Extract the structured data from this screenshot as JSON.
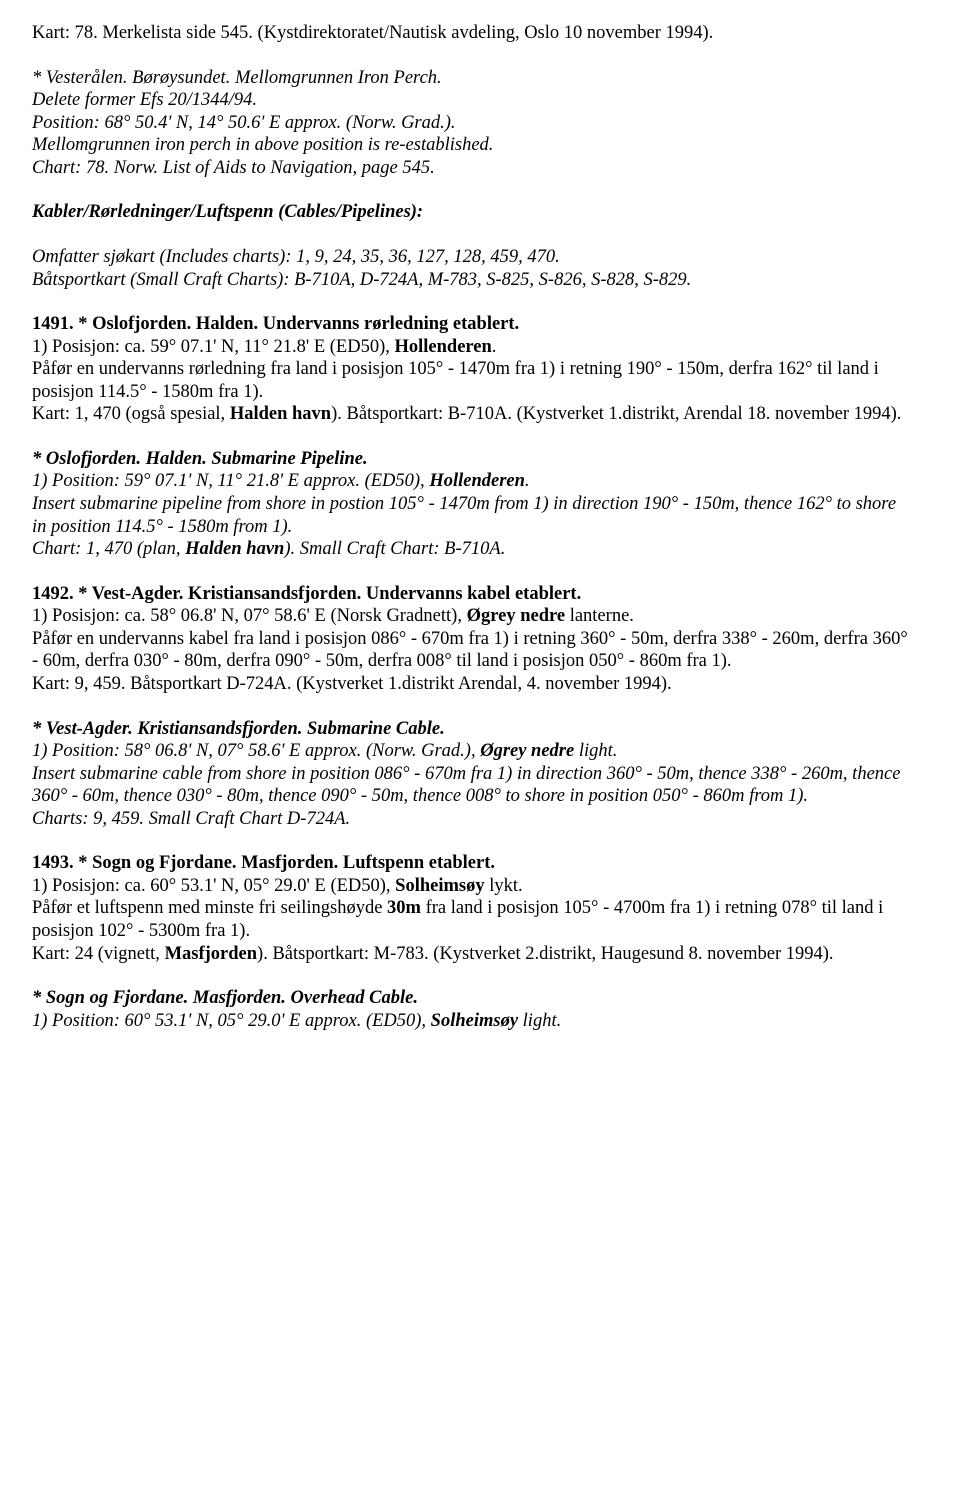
{
  "p0": [
    {
      "text": "Kart: 78. Merkelista side 545. (Kystdirektoratet/Nautisk avdeling, Oslo 10 november 1994)."
    }
  ],
  "p1": [
    {
      "text": "* Vesterålen. Børøysundet. Mellomgrunnen Iron Perch.",
      "style": "italic"
    },
    {
      "br": true
    },
    {
      "text": "Delete former Efs 20/1344/94.",
      "style": "italic"
    },
    {
      "br": true
    },
    {
      "text": "Position: 68° 50.4' N, 14° 50.6' E approx. (Norw. Grad.).",
      "style": "italic"
    },
    {
      "br": true
    },
    {
      "text": "Mellomgrunnen iron perch in above position is re-established.",
      "style": "italic"
    },
    {
      "br": true
    },
    {
      "text": "Chart: 78. Norw. List of Aids to Navigation, page 545.",
      "style": "italic"
    }
  ],
  "p2": [
    {
      "text": "Kabler/Rørledninger/Luftspenn (Cables/Pipelines):",
      "style": "bold-italic"
    }
  ],
  "p3": [
    {
      "text": "Omfatter sjøkart ",
      "style": "italic"
    },
    {
      "text": "(Includes charts)",
      "style": "italic"
    },
    {
      "text": ": 1, 9, 24, 35, 36, 127, 128, 459, 470.",
      "style": "italic"
    },
    {
      "br": true
    },
    {
      "text": "Båtsportkart ",
      "style": "italic"
    },
    {
      "text": "(Small Craft Charts)",
      "style": "italic"
    },
    {
      "text": ": B-710A, D-724A, M-783, S-825, S-826, S-828, S-829.",
      "style": "italic"
    }
  ],
  "p4": [
    {
      "text": "1491. * Oslofjorden. Halden. Undervanns rørledning etablert.",
      "style": "bold"
    },
    {
      "br": true
    },
    {
      "text": "1) Posisjon: ca. 59° 07.1' N, 11° 21.8' E (ED50), "
    },
    {
      "text": "Hollenderen",
      "style": "bold"
    },
    {
      "text": "."
    },
    {
      "br": true
    },
    {
      "text": "Påfør en undervanns rørledning fra land i posisjon 105° - 1470m fra 1) i retning 190° - 150m, derfra 162° til land i posisjon 114.5° - 1580m fra 1)."
    },
    {
      "br": true
    },
    {
      "text": "Kart: 1, 470 (også spesial, "
    },
    {
      "text": "Halden havn",
      "style": "bold"
    },
    {
      "text": "). Båtsportkart: B-710A. (Kystverket 1.distrikt, Arendal 18. november 1994)."
    }
  ],
  "p5": [
    {
      "text": "* Oslofjorden. Halden. Submarine Pipeline.",
      "style": "bold-italic"
    },
    {
      "br": true
    },
    {
      "text": "1) Position: 59° 07.1' N, 11° 21.8' E approx. (ED50), ",
      "style": "italic"
    },
    {
      "text": "Hollenderen",
      "style": "bold-italic"
    },
    {
      "text": ".",
      "style": "italic"
    },
    {
      "br": true
    },
    {
      "text": "Insert submarine pipeline from shore in postion 105° - 1470m from 1) in direction 190° - 150m, thence 162° to shore in position 114.5° - 1580m from 1).",
      "style": "italic"
    },
    {
      "br": true
    },
    {
      "text": "Chart: 1, 470 (plan, ",
      "style": "italic"
    },
    {
      "text": "Halden havn",
      "style": "bold-italic"
    },
    {
      "text": "). Small Craft Chart: B-710A.",
      "style": "italic"
    }
  ],
  "p6": [
    {
      "text": "1492. * Vest-Agder. Kristiansandsfjorden. Undervanns kabel etablert.",
      "style": "bold"
    },
    {
      "br": true
    },
    {
      "text": "1) Posisjon: ca. 58° 06.8' N, 07° 58.6' E (Norsk Gradnett), "
    },
    {
      "text": "Øgrey nedre",
      "style": "bold"
    },
    {
      "text": " lanterne."
    },
    {
      "br": true
    },
    {
      "text": "Påfør en undervanns kabel fra land i posisjon 086° - 670m fra 1) i retning 360° - 50m, derfra 338° - 260m, derfra 360° - 60m, derfra 030° - 80m, derfra 090° - 50m, derfra 008° til land i posisjon 050° - 860m fra 1)."
    },
    {
      "br": true
    },
    {
      "text": "Kart: 9, 459. Båtsportkart D-724A. (Kystverket 1.distrikt Arendal, 4. november 1994)."
    }
  ],
  "p7": [
    {
      "text": "* Vest-Agder. Kristiansandsfjorden. Submarine Cable.",
      "style": "bold-italic"
    },
    {
      "br": true
    },
    {
      "text": "1) Position: 58° 06.8' N, 07° 58.6' E approx. (Norw. Grad.), ",
      "style": "italic"
    },
    {
      "text": "Øgrey nedre",
      "style": "bold-italic"
    },
    {
      "text": " light.",
      "style": "italic"
    },
    {
      "br": true
    },
    {
      "text": "Insert submarine cable from shore in position 086° - 670m fra 1) in direction 360° - 50m, thence 338° - 260m, thence 360° - 60m, thence 030° - 80m, thence 090° - 50m, thence 008° to shore in position 050° - 860m from 1).",
      "style": "italic"
    },
    {
      "br": true
    },
    {
      "text": "Charts: 9, 459. Small Craft Chart D-724A.",
      "style": "italic"
    }
  ],
  "p8": [
    {
      "text": "1493. * Sogn og Fjordane. Masfjorden. Luftspenn etablert.",
      "style": "bold"
    },
    {
      "br": true
    },
    {
      "text": "1) Posisjon: ca. 60° 53.1' N, 05° 29.0' E (ED50), "
    },
    {
      "text": "Solheimsøy",
      "style": "bold"
    },
    {
      "text": " lykt."
    },
    {
      "br": true
    },
    {
      "text": "Påfør et luftspenn med minste fri seilingshøyde "
    },
    {
      "text": "30m",
      "style": "bold"
    },
    {
      "text": " fra land i posisjon 105° - 4700m fra 1) i retning 078° til land i posisjon 102° - 5300m fra 1)."
    },
    {
      "br": true
    },
    {
      "text": "Kart: 24 (vignett, "
    },
    {
      "text": "Masfjorden",
      "style": "bold"
    },
    {
      "text": "). Båtsportkart: M-783. (Kystverket 2.distrikt, Haugesund 8. november 1994)."
    }
  ],
  "p9": [
    {
      "text": "* Sogn og Fjordane. Masfjorden. Overhead Cable.",
      "style": "bold-italic"
    },
    {
      "br": true
    },
    {
      "text": "1) Position: 60° 53.1' N, 05° 29.0' E approx. (ED50), ",
      "style": "italic"
    },
    {
      "text": "Solheimsøy",
      "style": "bold-italic"
    },
    {
      "text": " light.",
      "style": "italic"
    }
  ]
}
